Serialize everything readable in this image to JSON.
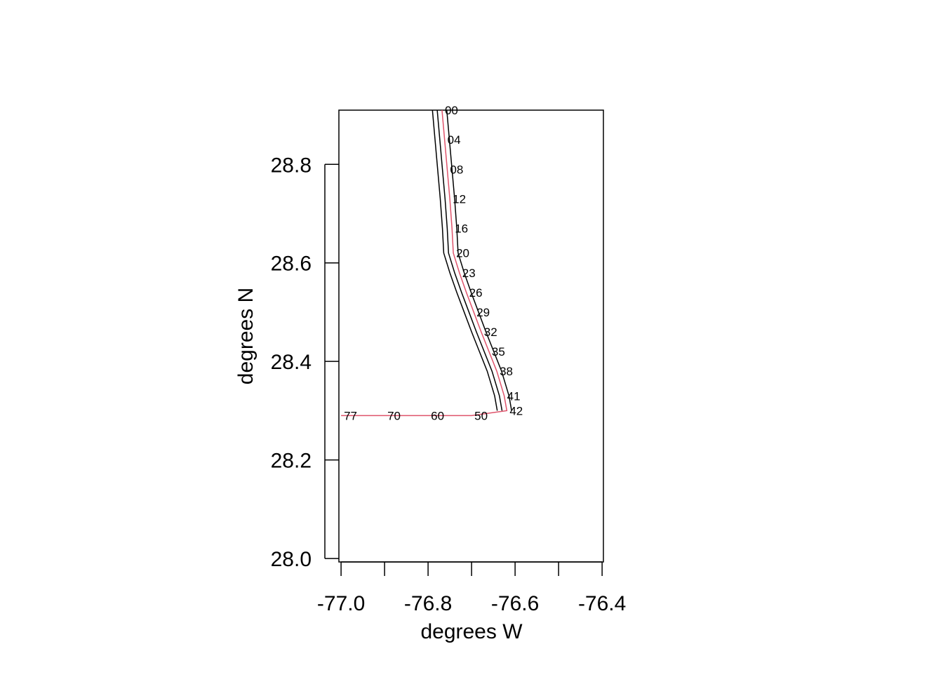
{
  "chart_data": {
    "type": "line",
    "x_label": "degrees W",
    "y_label": "degrees N",
    "xlim": [
      -77.005,
      -76.397
    ],
    "ylim": [
      27.993,
      28.91
    ],
    "xticks": [
      {
        "value": -77,
        "label": "-77.0"
      },
      -76.8,
      -76.6,
      -76.4
    ],
    "xminorticks": [
      -76.9,
      -76.7,
      -76.5
    ],
    "yticks": [
      {
        "value": 28,
        "label": "28.0"
      },
      28.2,
      28.4,
      28.6,
      28.8
    ],
    "series": [
      {
        "color": "#000000",
        "x": [
          -76.79,
          -76.784,
          -76.778,
          -76.772,
          -76.767,
          -76.764,
          -76.75,
          -76.734,
          -76.717,
          -76.7,
          -76.682,
          -76.664,
          -76.647,
          -76.641
        ],
        "values": [
          28.91,
          28.85,
          28.79,
          28.73,
          28.67,
          28.62,
          28.58,
          28.54,
          28.5,
          28.46,
          28.42,
          28.38,
          28.33,
          28.3
        ]
      },
      {
        "color": "#000000",
        "x": [
          -76.779,
          -76.773,
          -76.767,
          -76.761,
          -76.756,
          -76.753,
          -76.739,
          -76.723,
          -76.706,
          -76.689,
          -76.671,
          -76.653,
          -76.636,
          -76.63
        ],
        "values": [
          28.91,
          28.85,
          28.79,
          28.73,
          28.67,
          28.62,
          28.58,
          28.54,
          28.5,
          28.46,
          28.42,
          28.38,
          28.33,
          28.3
        ]
      },
      {
        "color": "#000000",
        "x": [
          -76.757,
          -76.751,
          -76.745,
          -76.739,
          -76.734,
          -76.731,
          -76.717,
          -76.701,
          -76.684,
          -76.667,
          -76.649,
          -76.631,
          -76.614,
          -76.608
        ],
        "values": [
          28.91,
          28.85,
          28.79,
          28.73,
          28.67,
          28.62,
          28.58,
          28.54,
          28.5,
          28.46,
          28.42,
          28.38,
          28.33,
          28.3
        ]
      },
      {
        "color": "#df536b",
        "x": [
          -76.768,
          -76.762,
          -76.756,
          -76.75,
          -76.745,
          -76.742,
          -76.728,
          -76.712,
          -76.695,
          -76.678,
          -76.66,
          -76.642,
          -76.625,
          -76.619,
          -76.7,
          -76.8,
          -76.9,
          -77.0
        ],
        "values": [
          28.91,
          28.85,
          28.79,
          28.73,
          28.67,
          28.62,
          28.58,
          28.54,
          28.5,
          28.46,
          28.42,
          28.38,
          28.33,
          28.3,
          28.29,
          28.29,
          28.29,
          28.29
        ],
        "point_labels": [
          "00",
          "04",
          "08",
          "12",
          "16",
          "20",
          "23",
          "26",
          "29",
          "32",
          "35",
          "38",
          "41",
          "42",
          "50",
          "60",
          "70",
          "77"
        ]
      }
    ]
  }
}
